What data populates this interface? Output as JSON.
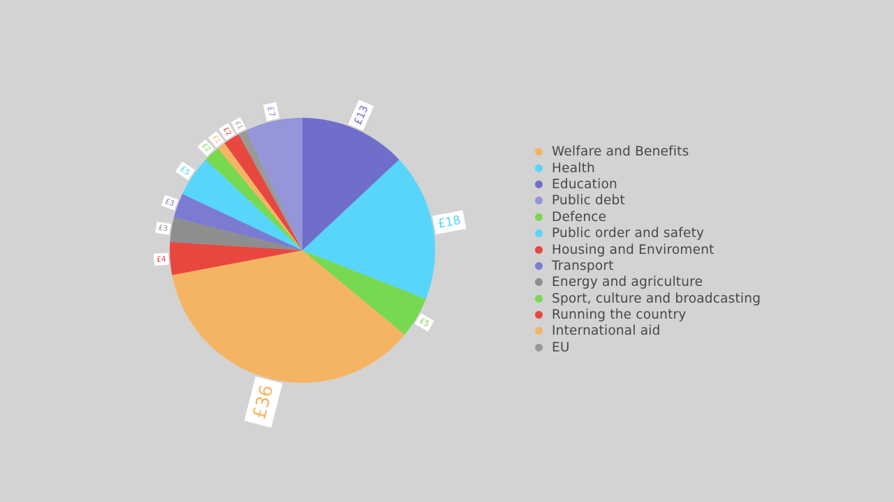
{
  "chart_data": {
    "type": "pie",
    "start_angle_deg": 0,
    "direction": "clockwise",
    "legend_position": "right",
    "slices": [
      {
        "name": "Education",
        "value": 13,
        "label": "£13",
        "color": "#6f6fcb"
      },
      {
        "name": "Health",
        "value": 18,
        "label": "£18",
        "color": "#58d5fb"
      },
      {
        "name": "Defence",
        "value": 5,
        "label": "£5",
        "color": "#77d94f"
      },
      {
        "name": "Welfare and Benefits",
        "value": 36,
        "label": "£36",
        "color": "#f5b463"
      },
      {
        "name": "Housing and Enviroment",
        "value": 4,
        "label": "£4",
        "color": "#e8473f"
      },
      {
        "name": "Energy and agriculture",
        "value": 3,
        "label": "£3",
        "color": "#8e8e8e"
      },
      {
        "name": "Transport",
        "value": 3,
        "label": "£3",
        "color": "#7b7bd2"
      },
      {
        "name": "Public order and safety",
        "value": 5,
        "label": "£5",
        "color": "#58d5fb"
      },
      {
        "name": "Sport, culture and broadcasting",
        "value": 2,
        "label": "£2",
        "color": "#77d94f"
      },
      {
        "name": "International aid",
        "value": 1,
        "label": "£1",
        "color": "#f5b463"
      },
      {
        "name": "Running the country",
        "value": 2,
        "label": "£2",
        "color": "#e8473f"
      },
      {
        "name": "EU",
        "value": 1,
        "label": "£1",
        "color": "#999999"
      },
      {
        "name": "Public debt",
        "value": 7,
        "label": "£7",
        "color": "#9595d9"
      }
    ],
    "legend": [
      {
        "name": "Welfare and Benefits",
        "color": "#f5b463"
      },
      {
        "name": "Health",
        "color": "#58d5fb"
      },
      {
        "name": "Education",
        "color": "#6f6fcb"
      },
      {
        "name": "Public debt",
        "color": "#9595d9"
      },
      {
        "name": "Defence",
        "color": "#77d94f"
      },
      {
        "name": "Public order and safety",
        "color": "#58d5fb"
      },
      {
        "name": "Housing and Enviroment",
        "color": "#e8473f"
      },
      {
        "name": "Transport",
        "color": "#7b7bd2"
      },
      {
        "name": "Energy and agriculture",
        "color": "#8e8e8e"
      },
      {
        "name": "Sport, culture and broadcasting",
        "color": "#77d94f"
      },
      {
        "name": "Running the country",
        "color": "#e8473f"
      },
      {
        "name": "International aid",
        "color": "#f5b463"
      },
      {
        "name": "EU",
        "color": "#999999"
      }
    ]
  }
}
